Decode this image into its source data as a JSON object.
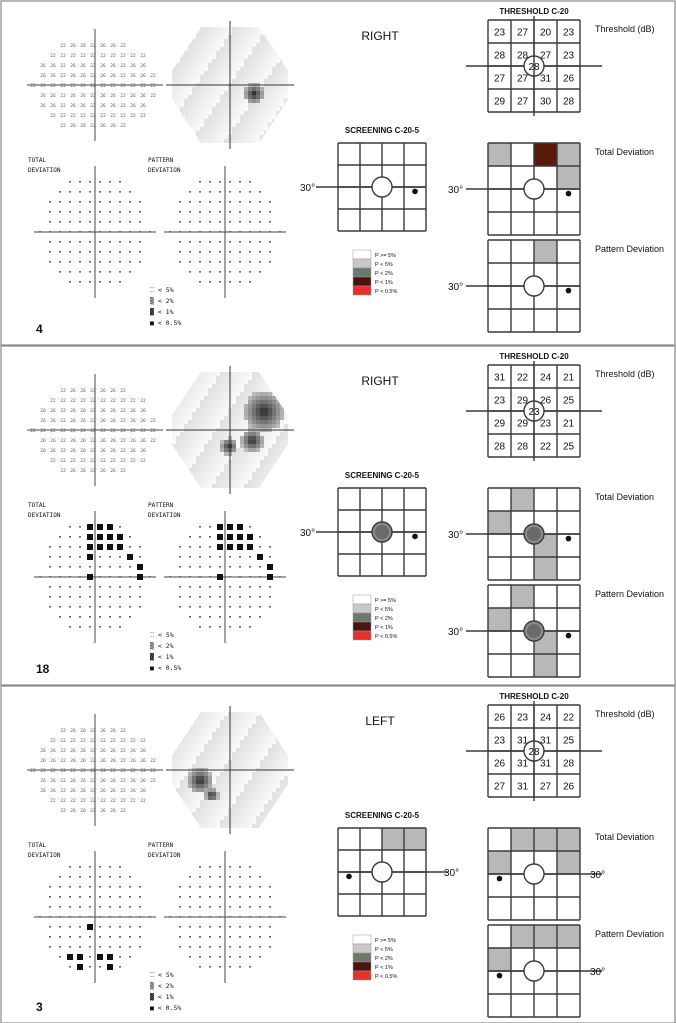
{
  "panels": [
    {
      "case_number": "4",
      "eye": "RIGHT",
      "screening_title": "SCREENING C-20-5",
      "threshold_title": "THRESHOLD C-20",
      "threshold_unit_label": "Threshold (dB)",
      "total_deviation_label": "Total Deviation",
      "pattern_deviation_label": "Pattern Deviation",
      "angle_label": "30°",
      "printout_total_label": [
        "TOTAL",
        "DEVIATION"
      ],
      "printout_pattern_label": [
        "PATTERN",
        "DEVIATION"
      ],
      "printout_legend": [
        "⁚⁚ < 5%",
        "▒ < 2%",
        "▓ < 1%",
        "■ < 0.5%"
      ],
      "screening_legend": [
        "P >= 5%",
        "P < 5%",
        "P < 2%",
        "P < 1%",
        "P < 0.5%"
      ],
      "threshold_values": [
        [
          "23",
          "27",
          "20",
          "23"
        ],
        [
          "28",
          "28",
          "27",
          "23"
        ],
        [
          "27",
          "27",
          "31",
          "26"
        ],
        [
          "29",
          "27",
          "30",
          "28"
        ]
      ],
      "center_value": "28",
      "screening_cells": [],
      "total_dev_cells": [
        [
          0,
          0,
          "light"
        ],
        [
          0,
          2,
          "dark"
        ],
        [
          0,
          3,
          "light"
        ],
        [
          1,
          3,
          "light"
        ]
      ],
      "pattern_dev_cells": [
        [
          0,
          2,
          "light"
        ]
      ],
      "screening_center_filled": false,
      "deviation_center_filled": false,
      "blind_spot": "right"
    },
    {
      "case_number": "18",
      "eye": "RIGHT",
      "screening_title": "SCREENING C-20-5",
      "threshold_title": "THRESHOLD C-20",
      "threshold_unit_label": "Threshold (dB)",
      "total_deviation_label": "Total Deviation",
      "pattern_deviation_label": "Pattern Deviation",
      "angle_label": "30°",
      "printout_total_label": [
        "TOTAL",
        "DEVIATION"
      ],
      "printout_pattern_label": [
        "PATTERN",
        "DEVIATION"
      ],
      "printout_legend": [
        "⁚⁚ < 5%",
        "▒ < 2%",
        "▓ < 1%",
        "■ < 0.5%"
      ],
      "screening_legend": [
        "P >= 5%",
        "P < 5%",
        "P < 2%",
        "P < 1%",
        "P < 0.5%"
      ],
      "threshold_values": [
        [
          "31",
          "22",
          "24",
          "21"
        ],
        [
          "23",
          "29",
          "26",
          "25"
        ],
        [
          "29",
          "29",
          "23",
          "21"
        ],
        [
          "28",
          "28",
          "22",
          "25"
        ]
      ],
      "center_value": "23",
      "screening_cells": [],
      "total_dev_cells": [
        [
          0,
          1,
          "light"
        ],
        [
          1,
          0,
          "light"
        ],
        [
          2,
          2,
          "light"
        ],
        [
          3,
          2,
          "light"
        ]
      ],
      "pattern_dev_cells": [
        [
          0,
          1,
          "light"
        ],
        [
          1,
          0,
          "light"
        ],
        [
          2,
          2,
          "light"
        ],
        [
          3,
          2,
          "light"
        ]
      ],
      "screening_center_filled": true,
      "deviation_center_filled": true,
      "blind_spot": "right"
    },
    {
      "case_number": "3",
      "eye": "LEFT",
      "screening_title": "SCREENING C-20-5",
      "threshold_title": "THRESHOLD C-20",
      "threshold_unit_label": "Threshold (dB)",
      "total_deviation_label": "Total Deviation",
      "pattern_deviation_label": "Pattern Deviation",
      "angle_label": "30°",
      "printout_total_label": [
        "TOTAL",
        "DEVIATION"
      ],
      "printout_pattern_label": [
        "PATTERN",
        "DEVIATION"
      ],
      "printout_legend": [
        "⁚⁚ < 5%",
        "▒ < 2%",
        "▓ < 1%",
        "■ < 0.5%"
      ],
      "screening_legend": [
        "P >= 5%",
        "P < 5%",
        "P < 2%",
        "P < 1%",
        "P < 0.5%"
      ],
      "threshold_values": [
        [
          "26",
          "23",
          "24",
          "22"
        ],
        [
          "23",
          "31",
          "31",
          "25"
        ],
        [
          "26",
          "31",
          "31",
          "28"
        ],
        [
          "27",
          "31",
          "27",
          "26"
        ]
      ],
      "center_value": "28",
      "screening_cells": [
        [
          0,
          2,
          "light"
        ],
        [
          0,
          3,
          "light"
        ]
      ],
      "total_dev_cells": [
        [
          0,
          1,
          "light"
        ],
        [
          0,
          2,
          "light"
        ],
        [
          0,
          3,
          "light"
        ],
        [
          1,
          0,
          "light"
        ],
        [
          1,
          3,
          "light"
        ]
      ],
      "pattern_dev_cells": [
        [
          0,
          1,
          "light"
        ],
        [
          0,
          2,
          "light"
        ],
        [
          0,
          3,
          "light"
        ],
        [
          1,
          0,
          "light"
        ]
      ],
      "screening_center_filled": false,
      "deviation_center_filled": false,
      "blind_spot": "left"
    }
  ],
  "colors": {
    "border": "#3a3a3a",
    "light_cell": "#b8b8b8",
    "dark_cell": "#5a1a0a",
    "filled_center": "#8a8a8a",
    "legend_swatches": [
      "#ffffff",
      "#c8c8c8",
      "#6c7a6c",
      "#4a1410",
      "#e8302a"
    ]
  }
}
